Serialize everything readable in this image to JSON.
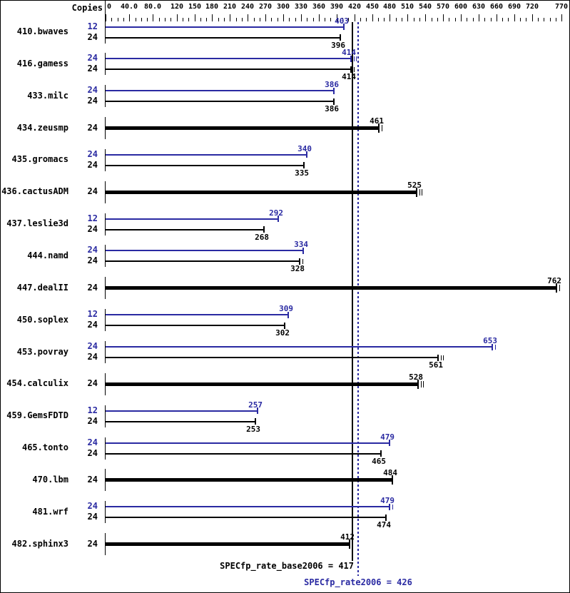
{
  "chart_data": {
    "type": "bar",
    "orientation": "horizontal",
    "copies_header": "Copies",
    "axis": {
      "min": 0,
      "max": 770,
      "major_ticks": [
        0,
        40,
        80,
        120,
        150,
        180,
        210,
        240,
        270,
        300,
        330,
        360,
        390,
        420,
        450,
        480,
        510,
        540,
        570,
        600,
        630,
        660,
        690,
        720,
        770
      ],
      "major_tick_labels": [
        "0",
        "40.0",
        "80.0",
        "120",
        "150",
        "180",
        "210",
        "240",
        "270",
        "300",
        "330",
        "360",
        "390",
        "420",
        "450",
        "480",
        "510",
        "540",
        "570",
        "600",
        "630",
        "660",
        "690",
        "720",
        "770"
      ],
      "minor_tick_step": 10,
      "grid": false
    },
    "benchmarks": [
      {
        "name": "410.bwaves",
        "bars": [
          {
            "copies": "12",
            "series": "peak",
            "value": 403,
            "marks": 1
          },
          {
            "copies": "24",
            "series": "base",
            "value": 396,
            "marks": 1
          }
        ]
      },
      {
        "name": "416.gamess",
        "bars": [
          {
            "copies": "24",
            "series": "peak",
            "value": 414,
            "marks": 3
          },
          {
            "copies": "24",
            "series": "base",
            "value": 414,
            "marks": 2
          }
        ]
      },
      {
        "name": "433.milc",
        "bars": [
          {
            "copies": "24",
            "series": "peak",
            "value": 386,
            "marks": 1
          },
          {
            "copies": "24",
            "series": "base",
            "value": 386,
            "marks": 1
          }
        ]
      },
      {
        "name": "434.zeusmp",
        "bars": [
          {
            "copies": "24",
            "series": "base-peak",
            "value": 461,
            "marks": 2
          }
        ]
      },
      {
        "name": "435.gromacs",
        "bars": [
          {
            "copies": "24",
            "series": "peak",
            "value": 340,
            "marks": 1
          },
          {
            "copies": "24",
            "series": "base",
            "value": 335,
            "marks": 1
          }
        ]
      },
      {
        "name": "436.cactusADM",
        "bars": [
          {
            "copies": "24",
            "series": "base-peak",
            "value": 525,
            "marks": 3
          }
        ]
      },
      {
        "name": "437.leslie3d",
        "bars": [
          {
            "copies": "12",
            "series": "peak",
            "value": 292,
            "marks": 1
          },
          {
            "copies": "24",
            "series": "base",
            "value": 268,
            "marks": 1
          }
        ]
      },
      {
        "name": "444.namd",
        "bars": [
          {
            "copies": "24",
            "series": "peak",
            "value": 334,
            "marks": 1
          },
          {
            "copies": "24",
            "series": "base",
            "value": 328,
            "marks": 2
          }
        ]
      },
      {
        "name": "447.dealII",
        "bars": [
          {
            "copies": "24",
            "series": "base-peak",
            "value": 762,
            "marks": 2
          }
        ]
      },
      {
        "name": "450.soplex",
        "bars": [
          {
            "copies": "12",
            "series": "peak",
            "value": 309,
            "marks": 1
          },
          {
            "copies": "24",
            "series": "base",
            "value": 302,
            "marks": 1
          }
        ]
      },
      {
        "name": "453.povray",
        "bars": [
          {
            "copies": "24",
            "series": "peak",
            "value": 653,
            "marks": 2
          },
          {
            "copies": "24",
            "series": "base",
            "value": 561,
            "marks": 3
          }
        ]
      },
      {
        "name": "454.calculix",
        "bars": [
          {
            "copies": "24",
            "series": "base-peak",
            "value": 528,
            "marks": 3
          }
        ]
      },
      {
        "name": "459.GemsFDTD",
        "bars": [
          {
            "copies": "12",
            "series": "peak",
            "value": 257,
            "marks": 1
          },
          {
            "copies": "24",
            "series": "base",
            "value": 253,
            "marks": 1
          }
        ]
      },
      {
        "name": "465.tonto",
        "bars": [
          {
            "copies": "24",
            "series": "peak",
            "value": 479,
            "marks": 1
          },
          {
            "copies": "24",
            "series": "base",
            "value": 465,
            "marks": 1
          }
        ]
      },
      {
        "name": "470.lbm",
        "bars": [
          {
            "copies": "24",
            "series": "base-peak",
            "value": 484,
            "marks": 1
          }
        ]
      },
      {
        "name": "481.wrf",
        "bars": [
          {
            "copies": "24",
            "series": "peak",
            "value": 479,
            "marks": 2
          },
          {
            "copies": "24",
            "series": "base",
            "value": 474,
            "marks": 1
          }
        ]
      },
      {
        "name": "482.sphinx3",
        "bars": [
          {
            "copies": "24",
            "series": "base-peak",
            "value": 412,
            "marks": 1
          }
        ]
      }
    ],
    "reference_lines": [
      {
        "metric": "SPECfp_rate_base2006",
        "value": 417,
        "style": "solid",
        "series": "base"
      },
      {
        "metric": "SPECfp_rate2006",
        "value": 426,
        "style": "dotted",
        "series": "peak"
      }
    ],
    "summary": [
      {
        "text": "SPECfp_rate_base2006 = 417",
        "series": "base"
      },
      {
        "text": "SPECfp_rate2006 = 426",
        "series": "peak"
      }
    ],
    "colors": {
      "peak": "#2a2aa2",
      "base": "#000000"
    }
  }
}
